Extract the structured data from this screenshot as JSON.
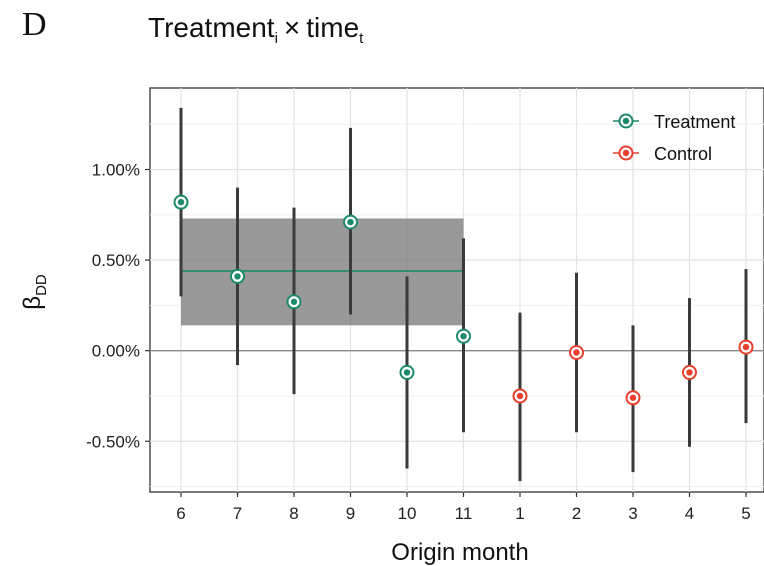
{
  "panel_label": "D",
  "title": {
    "main": "Treatment",
    "sub_i": "i",
    "op": "×",
    "main2": "time",
    "sub_t": "t"
  },
  "chart_data": {
    "type": "scatter",
    "subtype": "point-with-error-bars",
    "xlabel": "Origin month",
    "ylabel": "β",
    "ylabel_sub": "DD",
    "categories": [
      "6",
      "7",
      "8",
      "9",
      "10",
      "11",
      "1",
      "2",
      "3",
      "4",
      "5"
    ],
    "ylim": [
      -0.0078,
      0.0145
    ],
    "yticks": [
      -0.005,
      0.0,
      0.005,
      0.01
    ],
    "ytick_labels": [
      "-0.50%",
      "0.00%",
      "0.50%",
      "1.00%"
    ],
    "grid": true,
    "legend_position": "top-right",
    "series": [
      {
        "name": "Treatment",
        "color": "#1a8a6a",
        "points": [
          {
            "x": "6",
            "y": 0.0082,
            "lo": 0.003,
            "hi": 0.0134
          },
          {
            "x": "7",
            "y": 0.0041,
            "lo": -0.0008,
            "hi": 0.009
          },
          {
            "x": "8",
            "y": 0.0027,
            "lo": -0.0024,
            "hi": 0.0079
          },
          {
            "x": "9",
            "y": 0.0071,
            "lo": 0.002,
            "hi": 0.0123
          },
          {
            "x": "10",
            "y": -0.0012,
            "lo": -0.0065,
            "hi": 0.0041
          },
          {
            "x": "11",
            "y": 0.0008,
            "lo": -0.0045,
            "hi": 0.0062
          }
        ]
      },
      {
        "name": "Control",
        "color": "#e8402c",
        "points": [
          {
            "x": "1",
            "y": -0.0025,
            "lo": -0.0072,
            "hi": 0.0021
          },
          {
            "x": "2",
            "y": -0.0001,
            "lo": -0.0045,
            "hi": 0.0043
          },
          {
            "x": "3",
            "y": -0.0026,
            "lo": -0.0067,
            "hi": 0.0014
          },
          {
            "x": "4",
            "y": -0.0012,
            "lo": -0.0053,
            "hi": 0.0029
          },
          {
            "x": "5",
            "y": 0.0002,
            "lo": -0.004,
            "hi": 0.0045
          }
        ]
      }
    ],
    "reference_line": {
      "y": 0.0
    },
    "mean_band": {
      "x_from": "6",
      "x_to": "11",
      "mean": 0.0044,
      "lo": 0.0014,
      "hi": 0.0073,
      "band_color": "#7f7f7f",
      "line_color": "#1a8a6a"
    }
  }
}
